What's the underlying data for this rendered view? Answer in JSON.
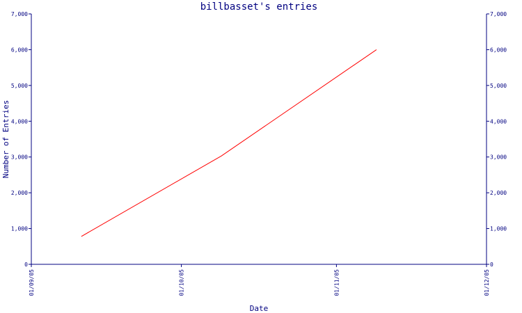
{
  "chart_data": {
    "type": "line",
    "title": "billbasset's entries",
    "xlabel": "Date",
    "ylabel": "Number of Entries",
    "x_ticks": [
      "01/09/05",
      "01/10/05",
      "01/11/05",
      "01/12/05"
    ],
    "y_ticks": [
      "0",
      "1,000",
      "2,000",
      "3,000",
      "4,000",
      "5,000",
      "6,000",
      "7,000"
    ],
    "y_tick_values": [
      0,
      1000,
      2000,
      3000,
      4000,
      5000,
      6000,
      7000
    ],
    "xlim": [
      "2005-09-01",
      "2005-12-01"
    ],
    "ylim": [
      0,
      7000
    ],
    "grid": false,
    "right_axis_mirrored": true,
    "series": [
      {
        "color": "#ff0000",
        "points": [
          {
            "x": "2005-09-11",
            "y": 780
          },
          {
            "x": "2005-10-09",
            "y": 3030
          },
          {
            "x": "2005-11-09",
            "y": 6000
          }
        ]
      }
    ]
  }
}
